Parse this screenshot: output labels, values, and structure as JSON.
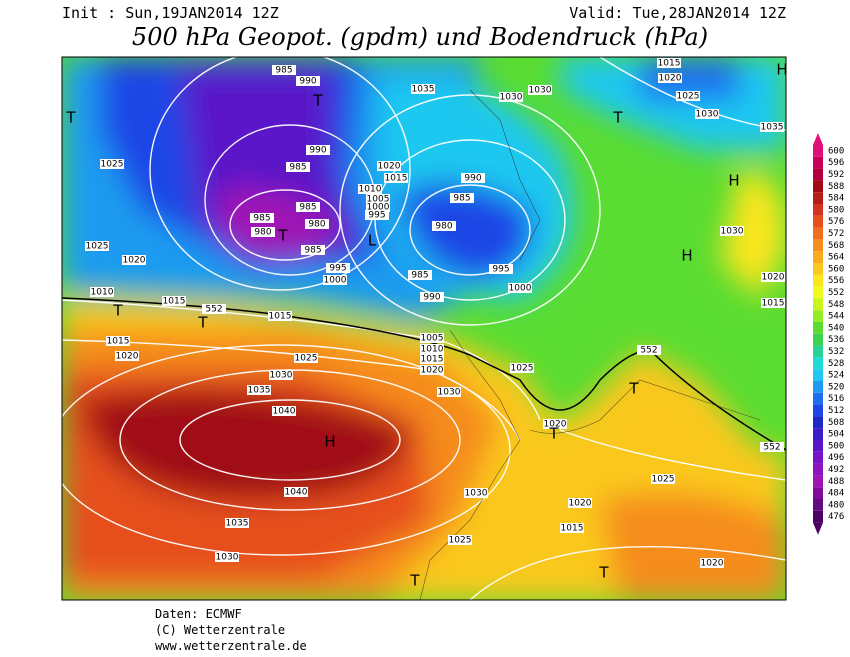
{
  "header": {
    "init": "Init : Sun,19JAN2014 12Z",
    "valid": "Valid: Tue,28JAN2014 12Z",
    "title": "500 hPa Geopot. (gpdm) und Bodendruck (hPa)"
  },
  "colorbar": {
    "levels": [
      600,
      596,
      592,
      588,
      584,
      580,
      576,
      572,
      568,
      564,
      560,
      556,
      552,
      548,
      544,
      540,
      536,
      532,
      528,
      524,
      520,
      516,
      512,
      508,
      504,
      500,
      496,
      492,
      488,
      484,
      480,
      476
    ],
    "colors": [
      "#e0107a",
      "#c8005a",
      "#b4003c",
      "#a00a14",
      "#b41e14",
      "#d2321e",
      "#e6501e",
      "#f06e1e",
      "#f58c1e",
      "#faaa1e",
      "#fac81e",
      "#fae61e",
      "#f0fa1e",
      "#c8f51e",
      "#96eb28",
      "#5adc32",
      "#3cd250",
      "#28d296",
      "#1edcd2",
      "#1ec8f0",
      "#1e9bf0",
      "#1e6ef0",
      "#1e46e6",
      "#1e28c8",
      "#3c1ec8",
      "#5a14c8",
      "#7814c8",
      "#8c14be",
      "#a014b4",
      "#820a9b",
      "#640a82",
      "#4b0064"
    ]
  },
  "map": {
    "isobar_labels": [
      985,
      990,
      1035,
      1030,
      1030,
      1015,
      1020,
      1025,
      1030,
      1035,
      1025,
      990,
      985,
      1020,
      1015,
      1010,
      1005,
      1000,
      995,
      990,
      985,
      985,
      985,
      980,
      980,
      985,
      980,
      1030,
      1025,
      1020,
      995,
      1000,
      985,
      995,
      990,
      1000,
      1020,
      1015,
      1010,
      1015,
      552,
      1015,
      1015,
      1020,
      1005,
      1010,
      1015,
      1020,
      1025,
      552,
      1025,
      1030,
      1035,
      1030,
      1040,
      1020,
      552,
      1025,
      1030,
      1040,
      1020,
      1015,
      1035,
      1025,
      1030,
      1020
    ],
    "pressure_centers": [
      "T",
      "T",
      "T",
      "H",
      "H",
      "L",
      "T",
      "T",
      "H",
      "T",
      "T",
      "T",
      "T",
      "H",
      "T"
    ]
  },
  "footer": {
    "source": "Daten: ECMWF",
    "copyright": "(C) Wetterzentrale",
    "url": "www.wetterzentrale.de"
  }
}
